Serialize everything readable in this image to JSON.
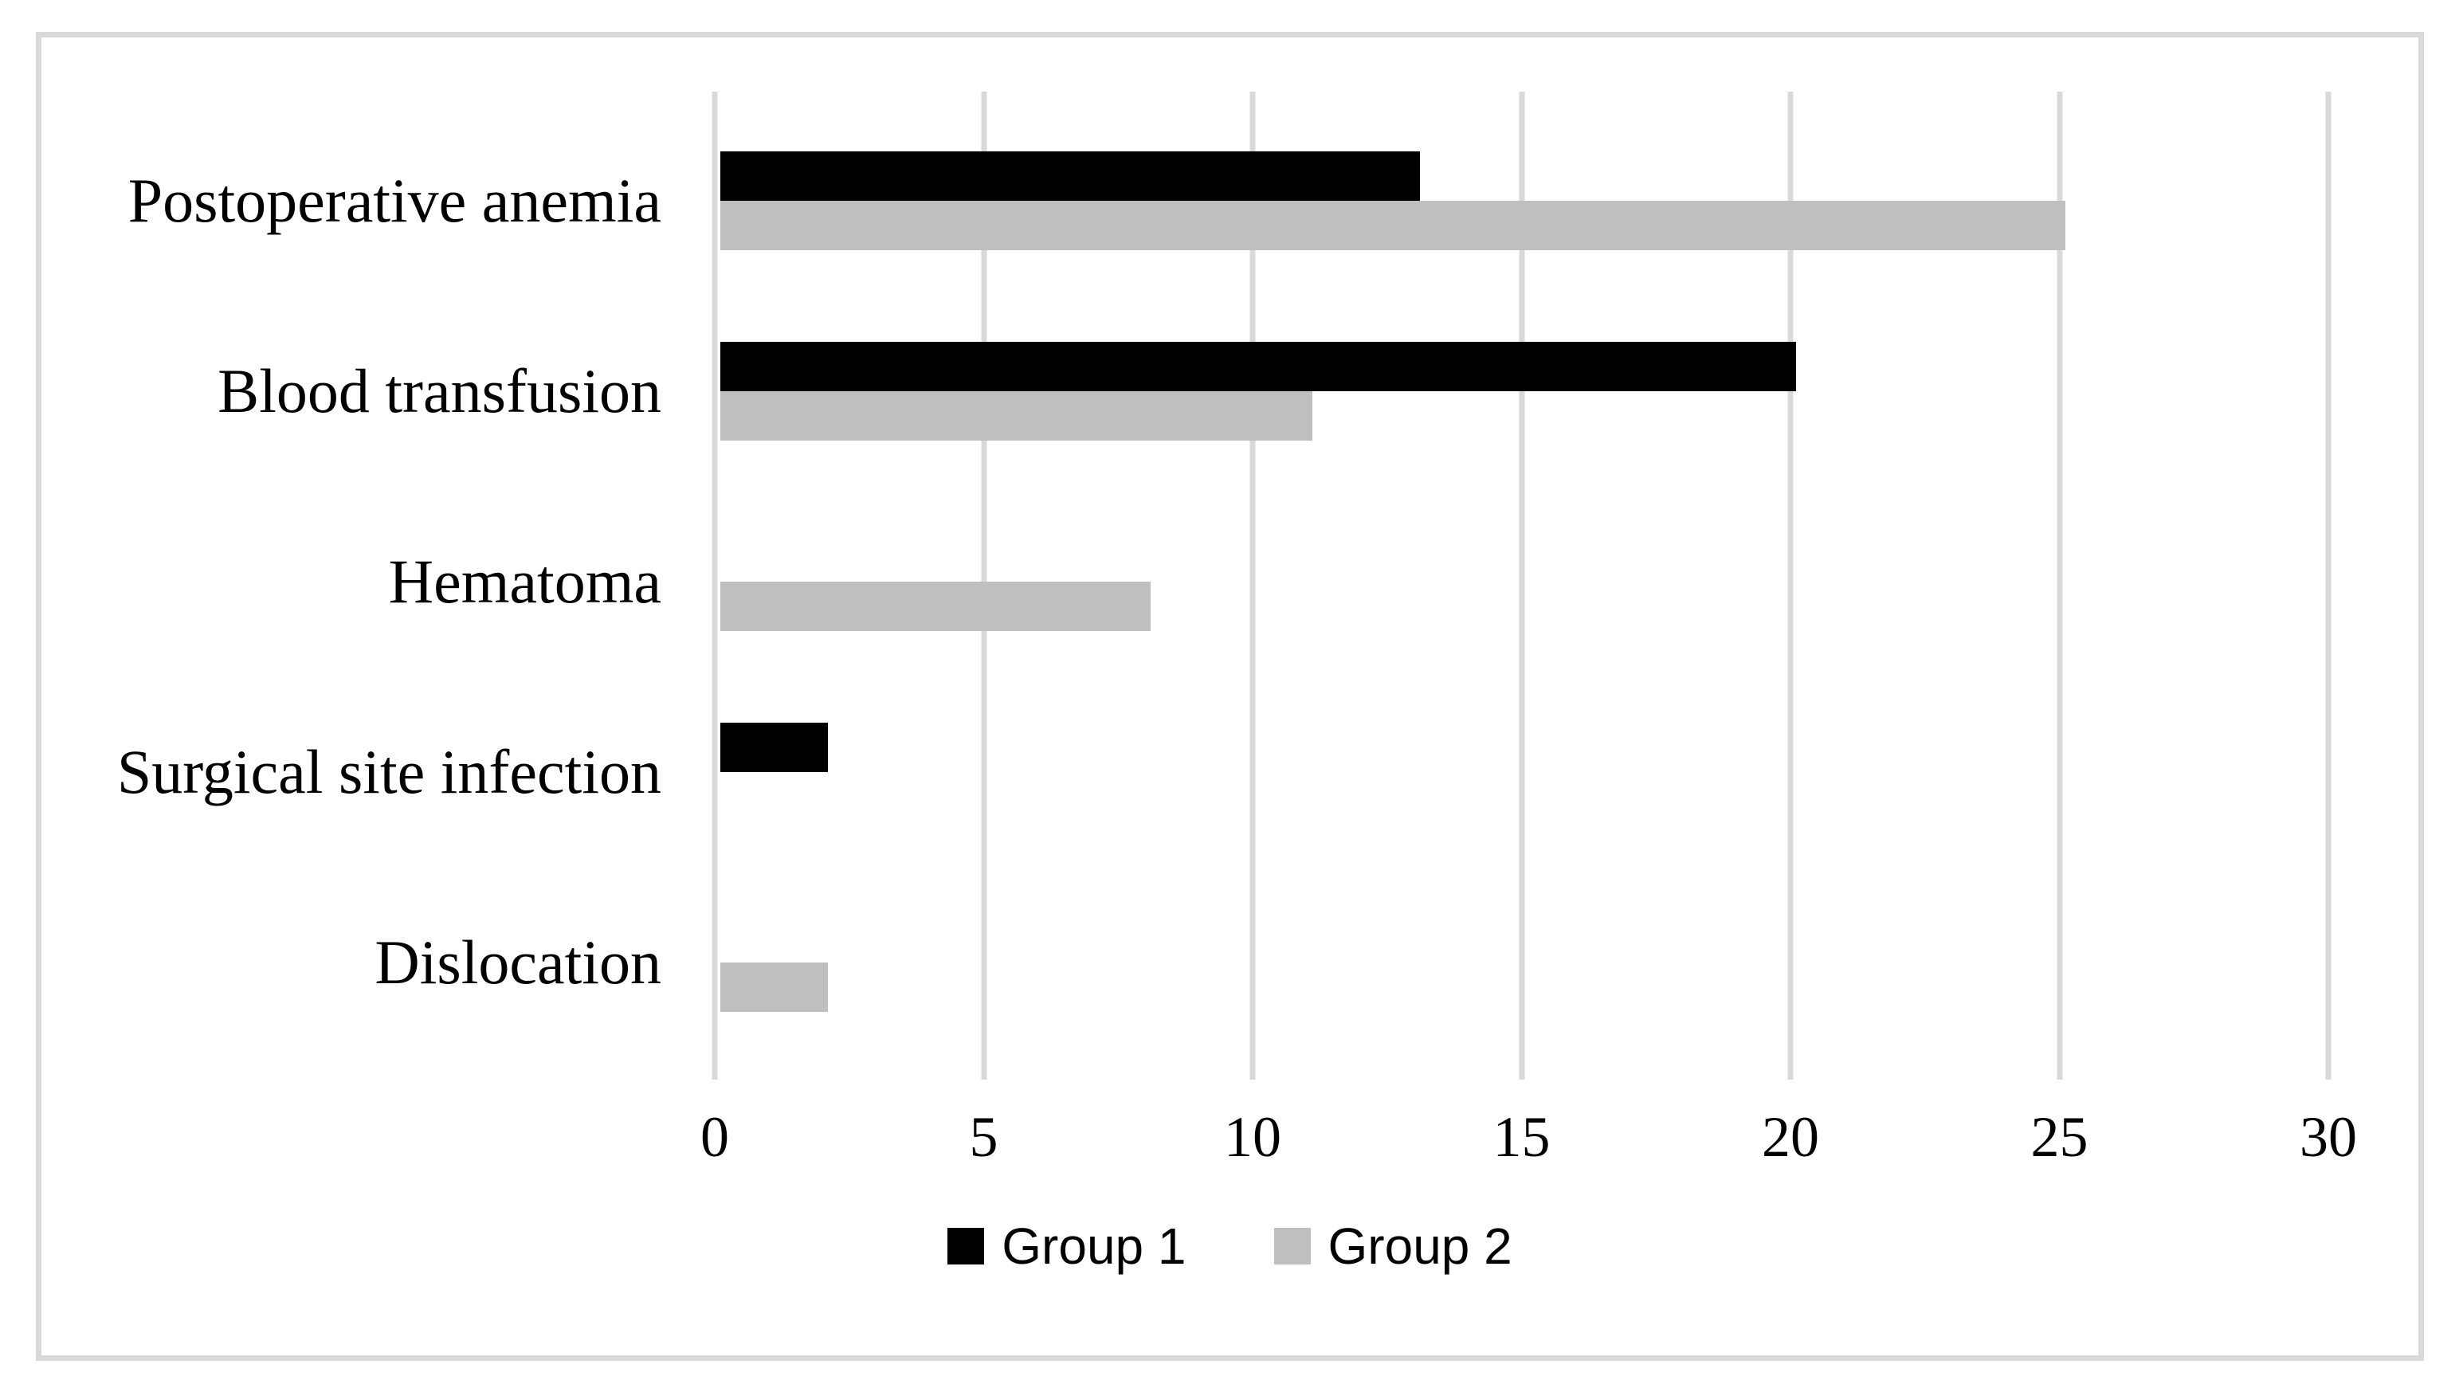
{
  "chart_data": {
    "type": "bar",
    "orientation": "horizontal",
    "title": "",
    "xlabel": "",
    "ylabel": "",
    "categories": [
      "Postoperative anemia",
      "Blood transfusion",
      "Hematoma",
      "Surgical site infection",
      "Dislocation"
    ],
    "series": [
      {
        "name": "Group 1",
        "color": "#000000",
        "values": [
          13,
          20,
          0,
          2,
          0
        ]
      },
      {
        "name": "Group 2",
        "color": "#bfbfbf",
        "values": [
          25,
          11,
          8,
          0,
          2
        ]
      }
    ],
    "x_axis": {
      "min": 0,
      "max": 30,
      "tick_step": 5,
      "tick_labels": [
        "0",
        "5",
        "10",
        "15",
        "20",
        "25",
        "30"
      ]
    },
    "grid": "vertical-lines",
    "gridline_color": "#d9d9d9",
    "frame_color": "#d9d9d9",
    "legend_position": "bottom"
  }
}
